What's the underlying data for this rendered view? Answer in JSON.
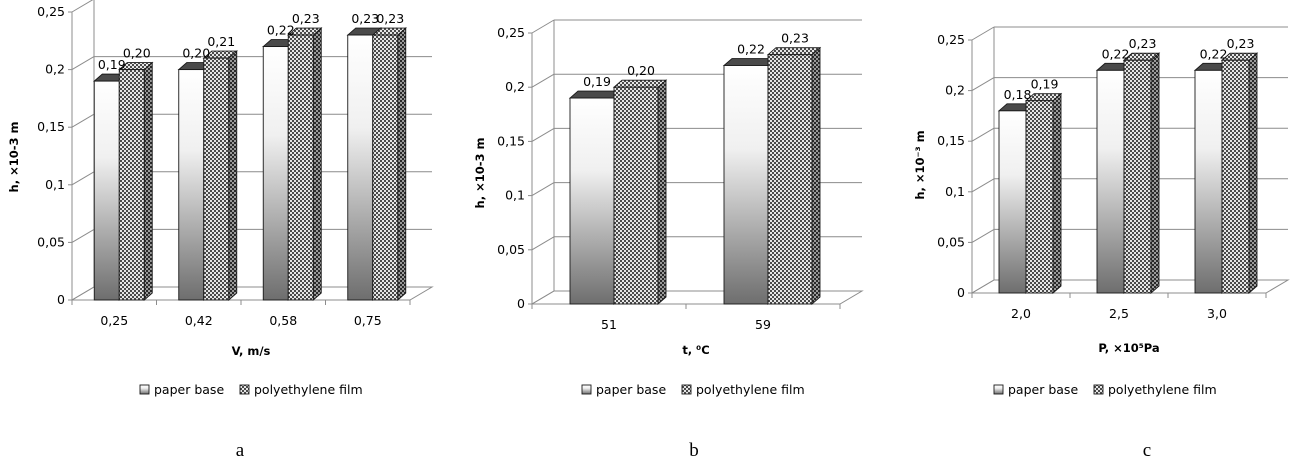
{
  "chart_data": [
    {
      "type": "bar",
      "panel_label": "a",
      "xlabel": "V, m/s",
      "ylabel": "h, ×10-3 m",
      "ylim": [
        0,
        0.25
      ],
      "yticks": [
        "0",
        "0,05",
        "0,1",
        "0,15",
        "0,2",
        "0,25"
      ],
      "categories": [
        "0,25",
        "0,42",
        "0,58",
        "0,75"
      ],
      "series": [
        {
          "name": "paper base",
          "values": [
            0.19,
            0.2,
            0.22,
            0.23
          ],
          "labels": [
            "0,19",
            "0,20",
            "0,22",
            "0,23"
          ]
        },
        {
          "name": "polyethylene film",
          "values": [
            0.2,
            0.21,
            0.23,
            0.23
          ],
          "labels": [
            "0,20",
            "0,21",
            "0,23",
            "0,23"
          ]
        }
      ],
      "grid": true,
      "legend_position": "bottom"
    },
    {
      "type": "bar",
      "panel_label": "b",
      "xlabel": "t, ⁰C",
      "ylabel": "h, ×10-3 m",
      "ylim": [
        0,
        0.25
      ],
      "yticks": [
        "0",
        "0,05",
        "0,1",
        "0,15",
        "0,2",
        "0,25"
      ],
      "categories": [
        "51",
        "59"
      ],
      "series": [
        {
          "name": "paper base",
          "values": [
            0.19,
            0.22
          ],
          "labels": [
            "0,19",
            "0,22"
          ]
        },
        {
          "name": "polyethylene film",
          "values": [
            0.2,
            0.23
          ],
          "labels": [
            "0,20",
            "0,23"
          ]
        }
      ],
      "grid": true,
      "legend_position": "bottom"
    },
    {
      "type": "bar",
      "panel_label": "c",
      "xlabel": "P, ×10⁵Pa",
      "ylabel": "h, ×10⁻³ m",
      "ylim": [
        0,
        0.25
      ],
      "yticks": [
        "0",
        "0,05",
        "0,1",
        "0,15",
        "0,2",
        "0,25"
      ],
      "categories": [
        "2,0",
        "2,5",
        "3,0"
      ],
      "series": [
        {
          "name": "paper base",
          "values": [
            0.18,
            0.22,
            0.22
          ],
          "labels": [
            "0,18",
            "0,22",
            "0,22"
          ]
        },
        {
          "name": "polyethylene film",
          "values": [
            0.19,
            0.23,
            0.23
          ],
          "labels": [
            "0,19",
            "0,23",
            "0,23"
          ]
        }
      ],
      "grid": true,
      "legend_position": "bottom"
    }
  ],
  "colors": {
    "axis": "#8c8c8c",
    "bar_outline": "#1a1a1a",
    "paper_top": "#ffffff",
    "paper_bottom": "#707070",
    "film_pattern": "#3c3c3c"
  }
}
